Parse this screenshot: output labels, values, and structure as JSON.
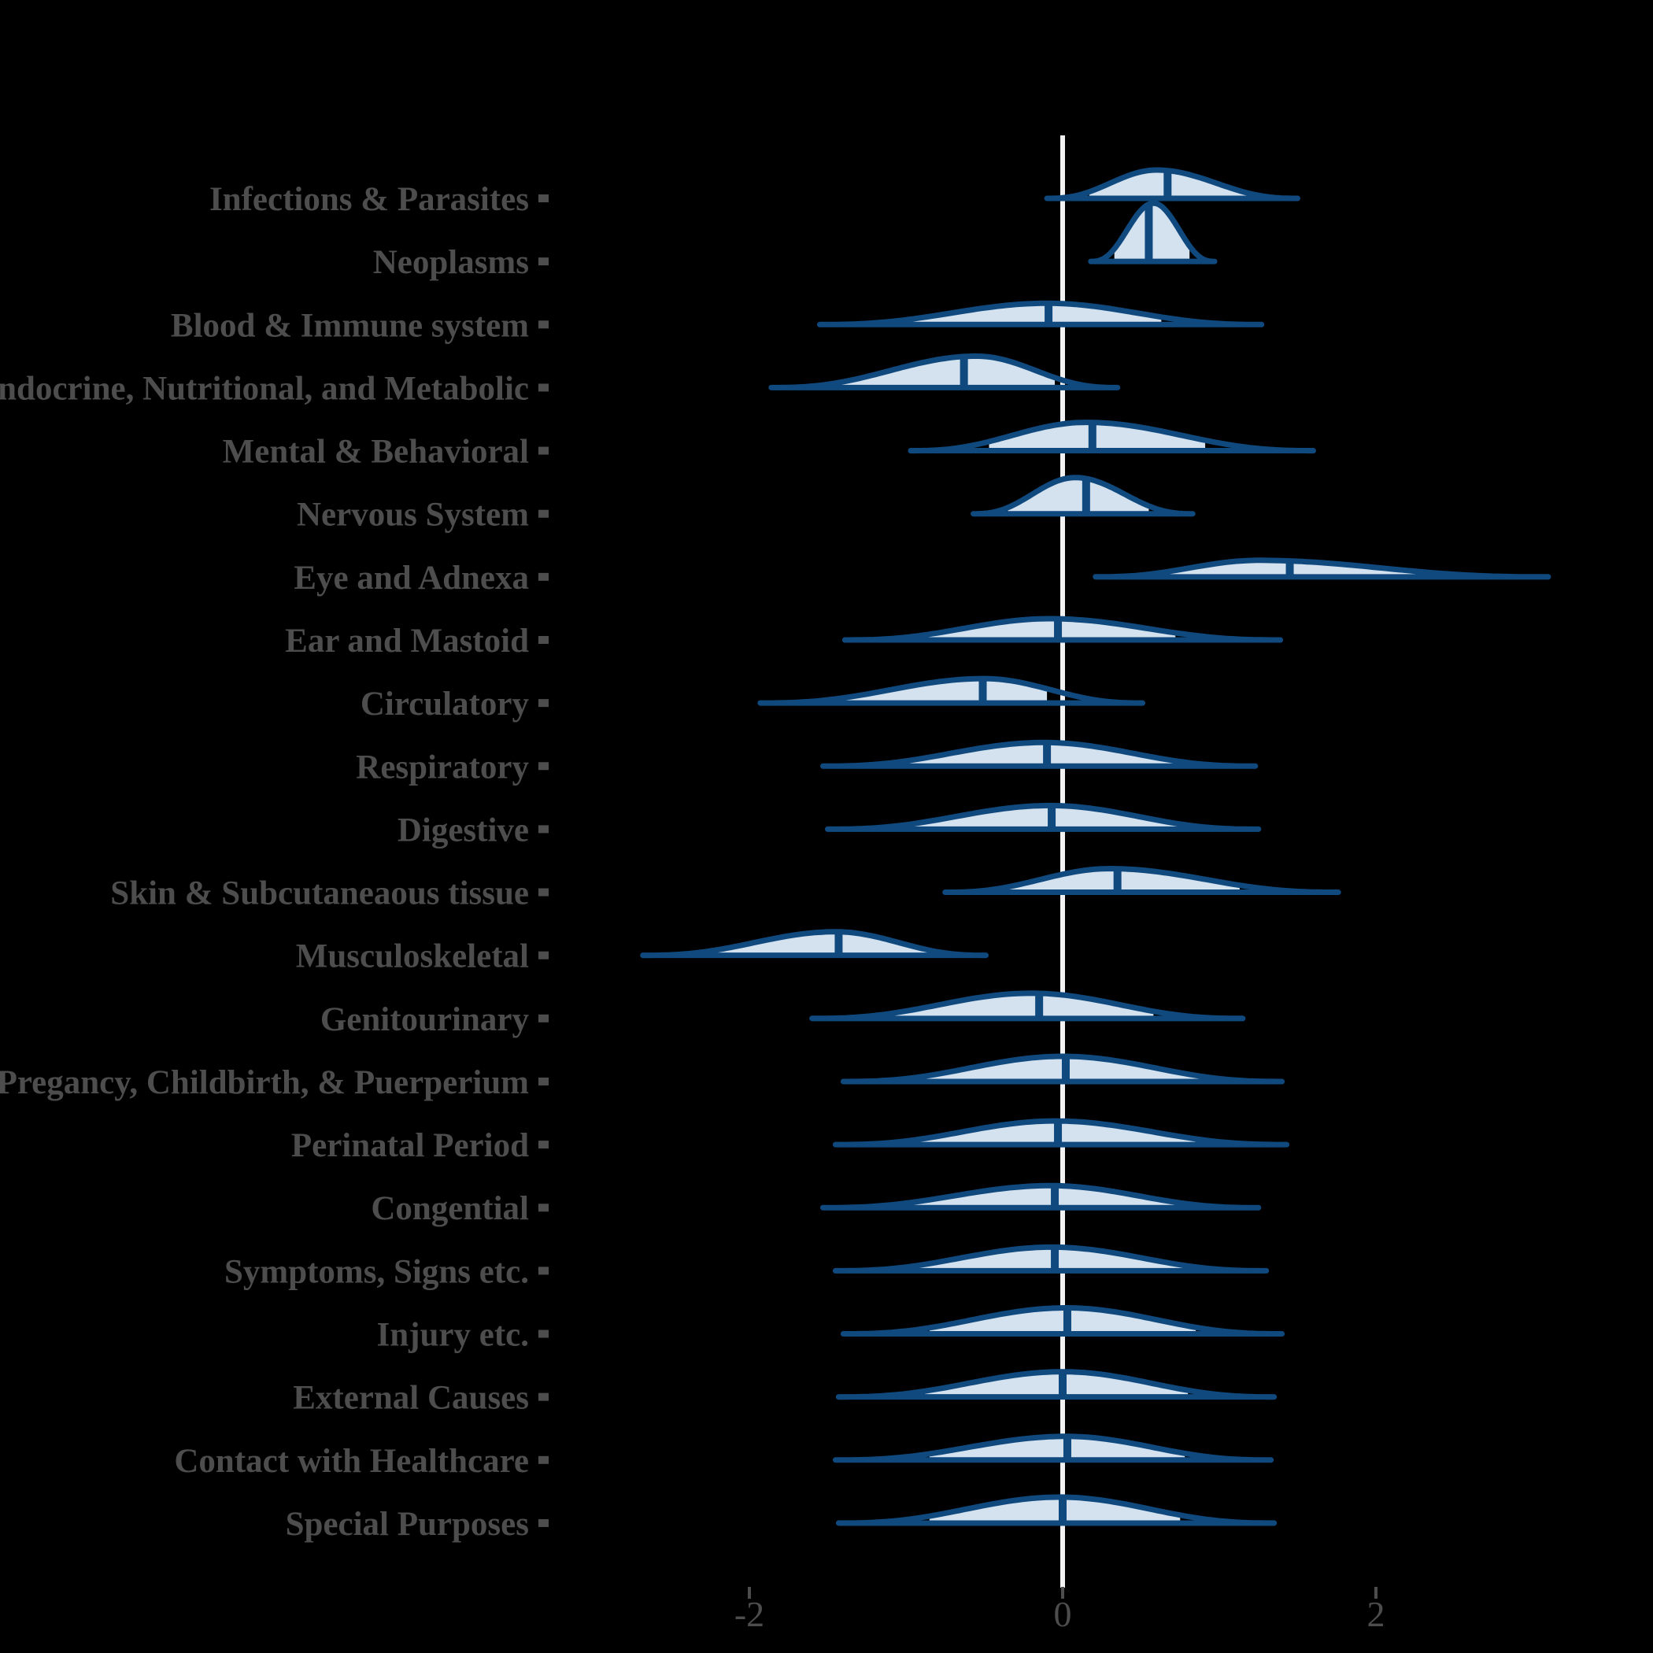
{
  "figure": {
    "background": "#000000",
    "colors": {
      "density_outline": "#10497E",
      "density_fill": "#D4E1EE",
      "median_line": "#10497E",
      "zero_line": "#F2F2F2",
      "label_text": "#4D4D4D",
      "axis_tick": "#4D4D4D"
    }
  },
  "chart_data": {
    "type": "area",
    "subtype": "ridgeline-density",
    "title": "",
    "xlabel": "",
    "ylabel": "",
    "x_ticks": [
      -2,
      0,
      2
    ],
    "x_tick_labels": [
      "-2",
      "0",
      "2"
    ],
    "xlim": [
      -3.4,
      3.75
    ],
    "zero_reference_line": 0,
    "grid": "off",
    "legend": "none",
    "categories": [
      "Infections & Parasites",
      "Neoplasms",
      "Blood & Immune system",
      "Endocrine, Nutritional, and Metabolic",
      "Mental & Behavioral",
      "Nervous System",
      "Eye and Adnexa",
      "Ear and Mastoid",
      "Circulatory",
      "Respiratory",
      "Digestive",
      "Skin & Subcutaneaous tissue",
      "Musculoskeletal",
      "Genitourinary",
      "Pregancy, Childbirth, & Puerperium",
      "Perinatal Period",
      "Congential",
      "Symptoms, Signs etc.",
      "Injury etc.",
      "External Causes",
      "Contact with Healthcare",
      "Special Purposes"
    ],
    "series": [
      {
        "label": "Infections & Parasites",
        "min": -0.1,
        "max": 1.5,
        "mode": 0.6,
        "median": 0.67,
        "fill_min": 0.17,
        "fill_max": 1.2,
        "peak": 36
      },
      {
        "label": "Neoplasms",
        "min": 0.18,
        "max": 0.97,
        "mode": 0.58,
        "median": 0.55,
        "fill_min": 0.33,
        "fill_max": 0.81,
        "peak": 74
      },
      {
        "label": "Blood & Immune system",
        "min": -1.55,
        "max": 1.27,
        "mode": -0.1,
        "median": -0.09,
        "fill_min": -1.05,
        "fill_max": 0.63,
        "peak": 27
      },
      {
        "label": "Endocrine, Nutritional, and Metabolic",
        "min": -1.86,
        "max": 0.35,
        "mode": -0.55,
        "median": -0.63,
        "fill_min": -1.44,
        "fill_max": -0.05,
        "peak": 40
      },
      {
        "label": "Mental & Behavioral",
        "min": -0.97,
        "max": 1.6,
        "mode": 0.15,
        "median": 0.19,
        "fill_min": -0.47,
        "fill_max": 0.91,
        "peak": 36
      },
      {
        "label": "Nervous System",
        "min": -0.57,
        "max": 0.83,
        "mode": 0.08,
        "median": 0.15,
        "fill_min": -0.35,
        "fill_max": 0.55,
        "peak": 46
      },
      {
        "label": "Eye and Adnexa",
        "min": 0.21,
        "max": 3.1,
        "mode": 1.25,
        "median": 1.45,
        "fill_min": 0.6,
        "fill_max": 2.55,
        "peak": 21
      },
      {
        "label": "Ear and Mastoid",
        "min": -1.39,
        "max": 1.39,
        "mode": -0.08,
        "median": -0.03,
        "fill_min": -0.9,
        "fill_max": 0.72,
        "peak": 27
      },
      {
        "label": "Circulatory",
        "min": -1.93,
        "max": 0.51,
        "mode": -0.5,
        "median": -0.51,
        "fill_min": -1.55,
        "fill_max": -0.1,
        "peak": 31
      },
      {
        "label": "Respiratory",
        "min": -1.53,
        "max": 1.23,
        "mode": -0.12,
        "median": -0.1,
        "fill_min": -1.05,
        "fill_max": 0.88,
        "peak": 30
      },
      {
        "label": "Digestive",
        "min": -1.5,
        "max": 1.25,
        "mode": -0.08,
        "median": -0.07,
        "fill_min": -0.95,
        "fill_max": 1.0,
        "peak": 30
      },
      {
        "label": "Skin & Subcutaneaous tissue",
        "min": -0.75,
        "max": 1.76,
        "mode": 0.3,
        "median": 0.35,
        "fill_min": -0.43,
        "fill_max": 1.13,
        "peak": 30
      },
      {
        "label": "Musculoskeletal",
        "min": -2.68,
        "max": -0.49,
        "mode": -1.45,
        "median": -1.43,
        "fill_min": -2.2,
        "fill_max": -0.8,
        "peak": 30
      },
      {
        "label": "Genitourinary",
        "min": -1.6,
        "max": 1.15,
        "mode": -0.2,
        "median": -0.15,
        "fill_min": -1.28,
        "fill_max": 0.58,
        "peak": 32
      },
      {
        "label": "Pregancy, Childbirth, & Puerperium",
        "min": -1.4,
        "max": 1.4,
        "mode": 0.0,
        "median": 0.02,
        "fill_min": -1.03,
        "fill_max": 0.9,
        "peak": 32
      },
      {
        "label": "Perinatal Period",
        "min": -1.45,
        "max": 1.43,
        "mode": -0.05,
        "median": -0.03,
        "fill_min": -1.03,
        "fill_max": 0.85,
        "peak": 30
      },
      {
        "label": "Congential",
        "min": -1.53,
        "max": 1.25,
        "mode": -0.08,
        "median": -0.05,
        "fill_min": -1.11,
        "fill_max": 0.75,
        "peak": 28
      },
      {
        "label": "Symptoms, Signs etc.",
        "min": -1.45,
        "max": 1.3,
        "mode": -0.07,
        "median": -0.05,
        "fill_min": -0.95,
        "fill_max": 0.8,
        "peak": 30
      },
      {
        "label": "Injury etc.",
        "min": -1.4,
        "max": 1.4,
        "mode": 0.02,
        "median": 0.03,
        "fill_min": -0.85,
        "fill_max": 0.85,
        "peak": 33
      },
      {
        "label": "External Causes",
        "min": -1.43,
        "max": 1.35,
        "mode": 0.0,
        "median": 0.0,
        "fill_min": -0.88,
        "fill_max": 0.8,
        "peak": 32
      },
      {
        "label": "Contact with Healthcare",
        "min": -1.45,
        "max": 1.33,
        "mode": 0.02,
        "median": 0.03,
        "fill_min": -0.85,
        "fill_max": 0.78,
        "peak": 30
      },
      {
        "label": "Special Purposes",
        "min": -1.43,
        "max": 1.35,
        "mode": -0.02,
        "median": 0.0,
        "fill_min": -0.85,
        "fill_max": 0.75,
        "peak": 33
      }
    ]
  }
}
